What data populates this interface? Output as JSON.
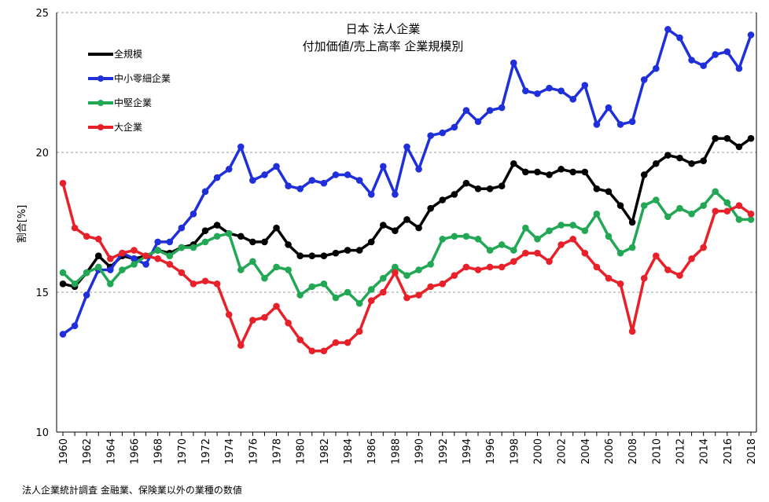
{
  "chart_data": {
    "type": "line",
    "title": "日本 法人企業",
    "subtitle": "付加価値/売上高率 企業規模別",
    "ylabel": "割合[%]",
    "ylim": [
      10,
      25
    ],
    "yticks": [
      10,
      15,
      20,
      25
    ],
    "grid": "horizontal dashed",
    "legend_placement": "top-left",
    "note": "法人企業統計調査 金融業、保険業以外の業種の数値",
    "x": [
      1960,
      1961,
      1962,
      1963,
      1964,
      1965,
      1966,
      1967,
      1968,
      1969,
      1970,
      1971,
      1972,
      1973,
      1974,
      1975,
      1976,
      1977,
      1978,
      1979,
      1980,
      1981,
      1982,
      1983,
      1984,
      1985,
      1986,
      1987,
      1988,
      1989,
      1990,
      1991,
      1992,
      1993,
      1994,
      1995,
      1996,
      1997,
      1998,
      1999,
      2000,
      2001,
      2002,
      2003,
      2004,
      2005,
      2006,
      2007,
      2008,
      2009,
      2010,
      2011,
      2012,
      2013,
      2014,
      2015,
      2016,
      2017,
      2018
    ],
    "xtick_labels": [
      "1960",
      "1962",
      "1964",
      "1966",
      "1968",
      "1970",
      "1972",
      "1974",
      "1976",
      "1978",
      "1980",
      "1982",
      "1984",
      "1986",
      "1988",
      "1990",
      "1992",
      "1994",
      "1996",
      "1998",
      "2000",
      "2002",
      "2004",
      "2006",
      "2008",
      "2010",
      "2012",
      "2014",
      "2016",
      "2018"
    ],
    "series": [
      {
        "name": "全規模",
        "color": "#000000",
        "values": [
          15.3,
          15.2,
          15.7,
          16.3,
          15.9,
          16.3,
          16.2,
          16.3,
          16.5,
          16.4,
          16.6,
          16.7,
          17.2,
          17.4,
          17.1,
          17.0,
          16.8,
          16.8,
          17.3,
          16.7,
          16.3,
          16.3,
          16.3,
          16.4,
          16.5,
          16.5,
          16.8,
          17.4,
          17.2,
          17.6,
          17.3,
          18.0,
          18.3,
          18.5,
          18.9,
          18.7,
          18.7,
          18.8,
          19.6,
          19.3,
          19.3,
          19.2,
          19.4,
          19.3,
          19.3,
          18.7,
          18.6,
          18.1,
          17.5,
          19.2,
          19.6,
          19.9,
          19.8,
          19.6,
          19.7,
          20.5,
          20.5,
          20.2,
          20.5
        ]
      },
      {
        "name": "中小零細企業",
        "color": "#1f2fd9",
        "values": [
          13.5,
          13.8,
          14.9,
          15.8,
          15.8,
          16.4,
          16.2,
          16.0,
          16.8,
          16.8,
          17.3,
          17.8,
          18.6,
          19.1,
          19.4,
          20.2,
          19.0,
          19.2,
          19.5,
          18.8,
          18.7,
          19.0,
          18.9,
          19.2,
          19.2,
          19.0,
          18.5,
          19.5,
          18.5,
          20.2,
          19.4,
          20.6,
          20.7,
          20.9,
          21.5,
          21.1,
          21.5,
          21.6,
          23.2,
          22.2,
          22.1,
          22.3,
          22.2,
          21.9,
          22.4,
          21.0,
          21.6,
          21.0,
          21.1,
          22.6,
          23.0,
          24.4,
          24.1,
          23.3,
          23.1,
          23.5,
          23.6,
          23.0,
          24.2
        ]
      },
      {
        "name": "中堅企業",
        "color": "#22a854",
        "values": [
          15.7,
          15.3,
          15.7,
          15.9,
          15.3,
          15.8,
          16.0,
          16.3,
          16.5,
          16.3,
          16.6,
          16.6,
          16.8,
          17.0,
          17.1,
          15.8,
          16.1,
          15.5,
          15.9,
          15.8,
          14.9,
          15.2,
          15.3,
          14.8,
          15.0,
          14.6,
          15.1,
          15.5,
          15.9,
          15.6,
          15.8,
          16.0,
          16.9,
          17.0,
          17.0,
          16.9,
          16.5,
          16.7,
          16.5,
          17.3,
          16.9,
          17.2,
          17.4,
          17.4,
          17.2,
          17.8,
          17.0,
          16.4,
          16.6,
          18.1,
          18.3,
          17.7,
          18.0,
          17.8,
          18.1,
          18.6,
          18.2,
          17.6,
          17.6
        ]
      },
      {
        "name": "大企業",
        "color": "#e8202a",
        "values": [
          18.9,
          17.3,
          17.0,
          16.9,
          16.2,
          16.4,
          16.5,
          16.3,
          16.2,
          16.0,
          15.7,
          15.3,
          15.4,
          15.3,
          14.2,
          13.1,
          14.0,
          14.1,
          14.5,
          13.9,
          13.3,
          12.9,
          12.9,
          13.2,
          13.2,
          13.6,
          14.7,
          15.0,
          15.7,
          14.8,
          14.9,
          15.2,
          15.3,
          15.6,
          15.9,
          15.8,
          15.9,
          15.9,
          16.1,
          16.4,
          16.4,
          16.1,
          16.7,
          16.9,
          16.4,
          15.9,
          15.5,
          15.3,
          13.6,
          15.5,
          16.3,
          15.8,
          15.6,
          16.2,
          16.6,
          17.9,
          17.9,
          18.1,
          17.8
        ]
      }
    ]
  }
}
